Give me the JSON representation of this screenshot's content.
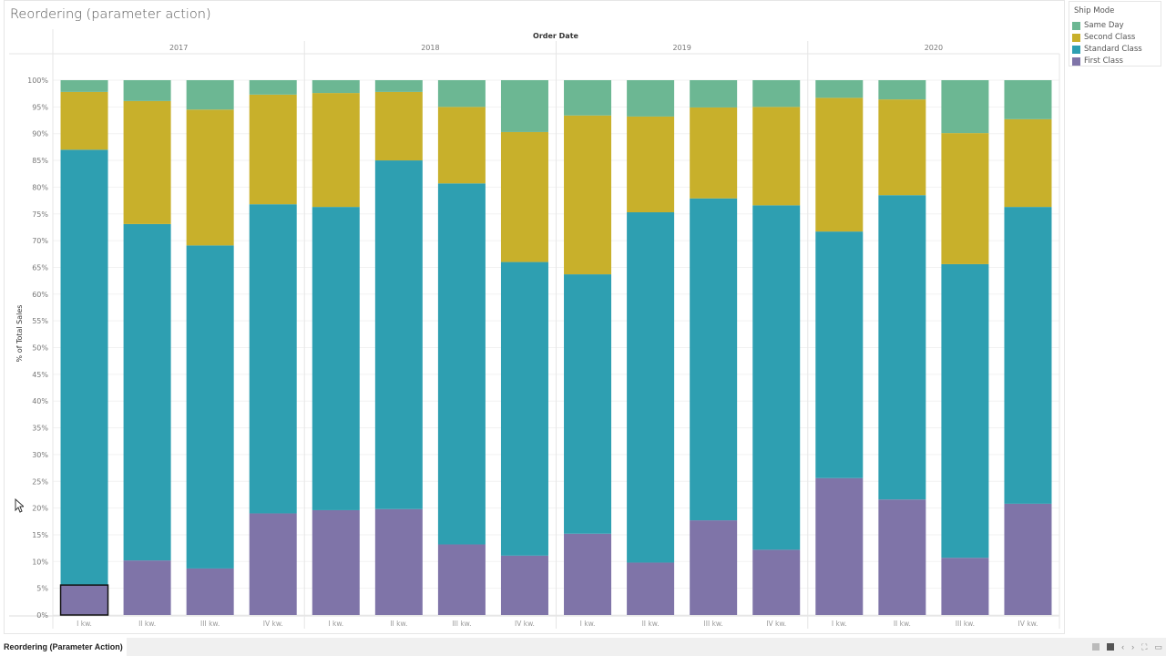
{
  "dashboard": {
    "title": "Reordering (parameter action)",
    "sheet_tab": "Reordering (Parameter Action)",
    "footer_icons": [
      "grid-icon",
      "square-icon",
      "prev-icon",
      "next-icon",
      "fullscreen-icon",
      "present-icon"
    ]
  },
  "legend": {
    "title": "Ship Mode",
    "items": [
      {
        "label": "Same Day",
        "color": "#6cb793"
      },
      {
        "label": "Second Class",
        "color": "#c8b02b"
      },
      {
        "label": "Standard Class",
        "color": "#2e9fb1"
      },
      {
        "label": "First Class",
        "color": "#7f74a8"
      }
    ]
  },
  "chart_data": {
    "type": "bar",
    "stacked": "100%",
    "title": "Reordering (parameter action)",
    "column_header": "Order Date",
    "ylabel": "% of Total Sales",
    "ylim": [
      0,
      100
    ],
    "yticks": [
      "0%",
      "5%",
      "10%",
      "15%",
      "20%",
      "25%",
      "30%",
      "35%",
      "40%",
      "45%",
      "50%",
      "55%",
      "60%",
      "65%",
      "70%",
      "75%",
      "80%",
      "85%",
      "90%",
      "95%",
      "100%"
    ],
    "years": [
      "2017",
      "2018",
      "2019",
      "2020"
    ],
    "quarters": [
      "I kw.",
      "II kw.",
      "III kw.",
      "IV kw."
    ],
    "series_order_bottom_to_top": [
      "First Class",
      "Standard Class",
      "Second Class",
      "Same Day"
    ],
    "series": [
      {
        "name": "First Class",
        "color": "#7f74a8",
        "values": [
          5.6,
          10.2,
          8.7,
          19.0,
          19.6,
          19.8,
          13.2,
          11.1,
          15.2,
          9.8,
          17.7,
          12.2,
          25.6,
          21.6,
          10.7,
          20.8
        ]
      },
      {
        "name": "Standard Class",
        "color": "#2e9fb1",
        "values": [
          81.4,
          62.9,
          60.4,
          57.8,
          56.7,
          65.2,
          67.5,
          54.9,
          48.5,
          65.5,
          60.2,
          64.4,
          46.1,
          56.9,
          54.9,
          55.5
        ]
      },
      {
        "name": "Second Class",
        "color": "#c8b02b",
        "values": [
          10.8,
          23.0,
          25.4,
          20.5,
          21.3,
          12.8,
          14.3,
          24.3,
          29.7,
          17.9,
          17.0,
          18.4,
          25.0,
          17.9,
          24.5,
          16.4
        ]
      },
      {
        "name": "Same Day",
        "color": "#6cb793",
        "values": [
          2.2,
          3.9,
          5.5,
          2.7,
          2.4,
          2.2,
          5.0,
          9.7,
          6.6,
          6.8,
          5.1,
          5.0,
          3.3,
          3.6,
          9.9,
          7.3
        ]
      }
    ],
    "selected": {
      "year": "2017",
      "quarter": "I kw.",
      "series": "First Class"
    },
    "grid": true,
    "legend_position": "right"
  }
}
